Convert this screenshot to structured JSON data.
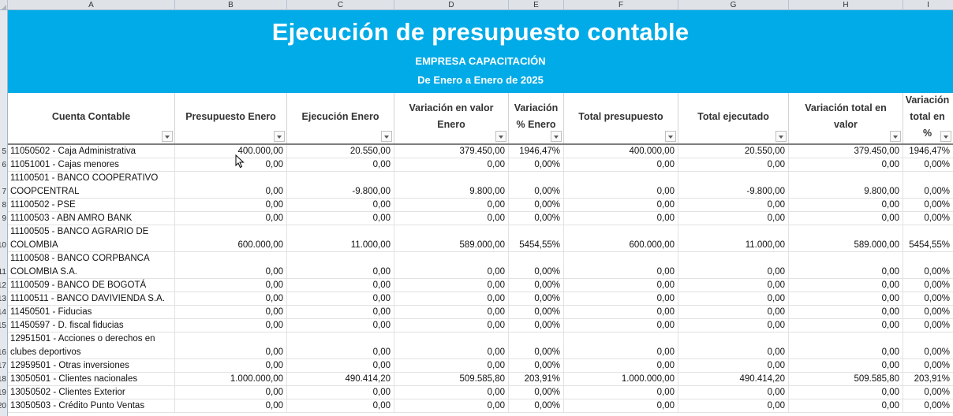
{
  "column_letters": [
    "A",
    "B",
    "C",
    "D",
    "E",
    "F",
    "G",
    "H",
    "I"
  ],
  "banner": {
    "title": "Ejecución de presupuesto contable",
    "company": "EMPRESA CAPACITACIÓN",
    "period": "De Enero a Enero de 2025",
    "background_color": "#00abe7"
  },
  "headers": [
    "Cuenta Contable",
    "Presupuesto Enero",
    "Ejecución Enero",
    "Variación en valor Enero",
    "Variación % Enero",
    "Total presupuesto",
    "Total ejecutado",
    "Variación total en valor",
    "Variación total en %"
  ],
  "rows": [
    {
      "num": "5",
      "cuenta": "11050502 - Caja Administrativa",
      "wrap": false,
      "values": [
        "400.000,00",
        "20.550,00",
        "379.450,00",
        "1946,47%",
        "400.000,00",
        "20.550,00",
        "379.450,00",
        "1946,47%"
      ]
    },
    {
      "num": "6",
      "cuenta": "11051001 - Cajas menores",
      "wrap": false,
      "values": [
        "0,00",
        "0,00",
        "0,00",
        "0,00%",
        "0,00",
        "0,00",
        "0,00",
        "0,00%"
      ]
    },
    {
      "num": "7",
      "cuenta": "11100501 - BANCO COOPERATIVO COOPCENTRAL",
      "wrap": true,
      "values": [
        "0,00",
        "-9.800,00",
        "9.800,00",
        "0,00%",
        "0,00",
        "-9.800,00",
        "9.800,00",
        "0,00%"
      ]
    },
    {
      "num": "8",
      "cuenta": "11100502 - PSE",
      "wrap": false,
      "values": [
        "0,00",
        "0,00",
        "0,00",
        "0,00%",
        "0,00",
        "0,00",
        "0,00",
        "0,00%"
      ]
    },
    {
      "num": "9",
      "cuenta": "11100503 - ABN AMRO BANK",
      "wrap": false,
      "values": [
        "0,00",
        "0,00",
        "0,00",
        "0,00%",
        "0,00",
        "0,00",
        "0,00",
        "0,00%"
      ]
    },
    {
      "num": "10",
      "cuenta": "11100505 - BANCO AGRARIO DE COLOMBIA",
      "wrap": true,
      "values": [
        "600.000,00",
        "11.000,00",
        "589.000,00",
        "5454,55%",
        "600.000,00",
        "11.000,00",
        "589.000,00",
        "5454,55%"
      ]
    },
    {
      "num": "11",
      "cuenta": "11100508 - BANCO CORPBANCA COLOMBIA S.A.",
      "wrap": true,
      "values": [
        "0,00",
        "0,00",
        "0,00",
        "0,00%",
        "0,00",
        "0,00",
        "0,00",
        "0,00%"
      ]
    },
    {
      "num": "12",
      "cuenta": "11100509 - BANCO DE BOGOTÁ",
      "wrap": false,
      "values": [
        "0,00",
        "0,00",
        "0,00",
        "0,00%",
        "0,00",
        "0,00",
        "0,00",
        "0,00%"
      ]
    },
    {
      "num": "13",
      "cuenta": "11100511 - BANCO DAVIVIENDA S.A.",
      "wrap": false,
      "values": [
        "0,00",
        "0,00",
        "0,00",
        "0,00%",
        "0,00",
        "0,00",
        "0,00",
        "0,00%"
      ]
    },
    {
      "num": "14",
      "cuenta": "11450501 - Fiducias",
      "wrap": false,
      "values": [
        "0,00",
        "0,00",
        "0,00",
        "0,00%",
        "0,00",
        "0,00",
        "0,00",
        "0,00%"
      ]
    },
    {
      "num": "15",
      "cuenta": "11450597 - D. fiscal fiducias",
      "wrap": false,
      "values": [
        "0,00",
        "0,00",
        "0,00",
        "0,00%",
        "0,00",
        "0,00",
        "0,00",
        "0,00%"
      ]
    },
    {
      "num": "16",
      "cuenta": "12951501 - Acciones o derechos en clubes deportivos",
      "wrap": true,
      "values": [
        "0,00",
        "0,00",
        "0,00",
        "0,00%",
        "0,00",
        "0,00",
        "0,00",
        "0,00%"
      ]
    },
    {
      "num": "17",
      "cuenta": "12959501 - Otras inversiones",
      "wrap": false,
      "values": [
        "0,00",
        "0,00",
        "0,00",
        "0,00%",
        "0,00",
        "0,00",
        "0,00",
        "0,00%"
      ]
    },
    {
      "num": "18",
      "cuenta": "13050501 - Clientes nacionales",
      "wrap": false,
      "values": [
        "1.000.000,00",
        "490.414,20",
        "509.585,80",
        "203,91%",
        "1.000.000,00",
        "490.414,20",
        "509.585,80",
        "203,91%"
      ]
    },
    {
      "num": "19",
      "cuenta": "13050502 - Clientes Exterior",
      "wrap": false,
      "values": [
        "0,00",
        "0,00",
        "0,00",
        "0,00%",
        "0,00",
        "0,00",
        "0,00",
        "0,00%"
      ]
    },
    {
      "num": "20",
      "cuenta": "13050503 - Crédito Punto Ventas",
      "wrap": false,
      "values": [
        "0,00",
        "0,00",
        "0,00",
        "0,00%",
        "0,00",
        "0,00",
        "0,00",
        "0,00%"
      ]
    }
  ]
}
